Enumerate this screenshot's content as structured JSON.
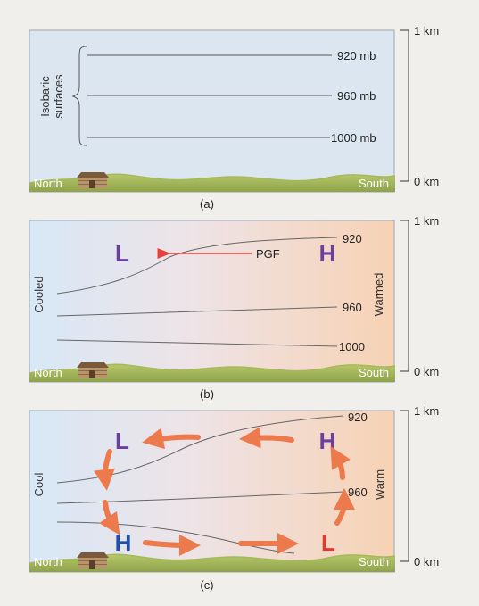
{
  "scale": {
    "top_label": "1 km",
    "bottom_label": "0 km"
  },
  "ground": {
    "left_label": "North",
    "right_label": "South",
    "house": "cabin-icon"
  },
  "panels": [
    {
      "caption": "(a)",
      "side_label_left": "",
      "side_label_right": "",
      "isobaric_label_line1": "Isobaric",
      "isobaric_label_line2": "surfaces",
      "isobars": [
        "920 mb",
        "960 mb",
        "1000 mb"
      ],
      "background": "uniform",
      "colors": {
        "left": "#dbe6f1",
        "right": "#dbe6f1"
      }
    },
    {
      "caption": "(b)",
      "side_label_left": "Cooled",
      "side_label_right": "Warmed",
      "isobars": [
        "920",
        "960",
        "1000"
      ],
      "pressure_left": "L",
      "pressure_right": "H",
      "pgf_label": "PGF",
      "background": "cool-to-warm",
      "colors": {
        "left": "#d8e8f7",
        "right": "#f7d2b4",
        "low": "#6b3fa0",
        "high": "#6b3fa0",
        "arrow": "#e8403a"
      }
    },
    {
      "caption": "(c)",
      "side_label_left": "Cool",
      "side_label_right": "Warm",
      "isobars": [
        "920",
        "960"
      ],
      "upper_left": "L",
      "upper_right": "H",
      "lower_left": "H",
      "lower_right": "L",
      "background": "cool-to-warm",
      "colors": {
        "left": "#d8e8f7",
        "right": "#f7d2b4",
        "upper": "#6b3fa0",
        "lower_high": "#1f4fa8",
        "lower_low": "#e23a2e",
        "arrow": "#ec7a4c"
      }
    }
  ]
}
